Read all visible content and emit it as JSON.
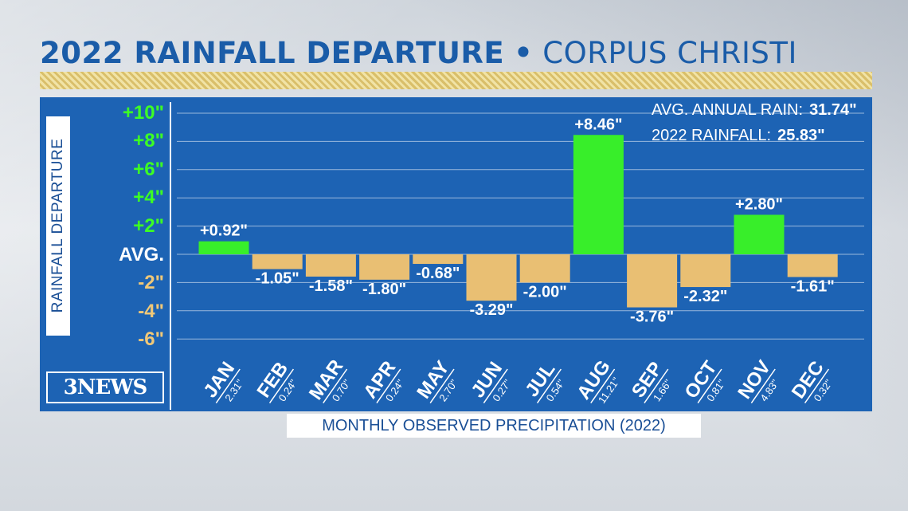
{
  "header": {
    "title_bold": "2022 RAINFALL DEPARTURE",
    "title_sep": "•",
    "title_light": "CORPUS CHRISTI"
  },
  "footer": {
    "label": "MONTHLY OBSERVED PRECIPITATION (2022)"
  },
  "branding": {
    "logo_text": "3NEWS"
  },
  "stats": {
    "avg_label": "AVG. ANNUAL RAIN:",
    "avg_value": "31.74\"",
    "total_label": "2022 RAINFALL:",
    "total_value": "25.83\""
  },
  "colors": {
    "panel": "#1d63b4",
    "positive_bar": "#38ee2a",
    "negative_bar": "#e9bf73",
    "title": "#1a5ca8"
  },
  "chart_data": {
    "type": "bar",
    "title": "2022 RAINFALL DEPARTURE • CORPUS CHRISTI",
    "ylabel": "RAINFALL DEPARTURE",
    "xlabel": "MONTHLY OBSERVED PRECIPITATION (2022)",
    "ylim": [
      -6,
      10
    ],
    "yticks": [
      {
        "value": 10,
        "label": "+10\""
      },
      {
        "value": 8,
        "label": "+8\""
      },
      {
        "value": 6,
        "label": "+6\""
      },
      {
        "value": 4,
        "label": "+4\""
      },
      {
        "value": 2,
        "label": "+2\""
      },
      {
        "value": 0,
        "label": "AVG."
      },
      {
        "value": -2,
        "label": "-2\""
      },
      {
        "value": -4,
        "label": "-4\""
      },
      {
        "value": -6,
        "label": "-6\""
      }
    ],
    "grid": true,
    "categories": [
      "JAN",
      "FEB",
      "MAR",
      "APR",
      "MAY",
      "JUN",
      "JUL",
      "AUG",
      "SEP",
      "OCT",
      "NOV",
      "DEC"
    ],
    "values": [
      0.92,
      -1.05,
      -1.58,
      -1.8,
      -0.68,
      -3.29,
      -2.0,
      8.46,
      -3.76,
      -2.32,
      2.8,
      -1.61
    ],
    "value_labels": [
      "+0.92\"",
      "-1.05\"",
      "-1.58\"",
      "-1.80\"",
      "-0.68\"",
      "-3.29\"",
      "-2.00\"",
      "+8.46\"",
      "-3.76\"",
      "-2.32\"",
      "+2.80\"",
      "-1.61\""
    ],
    "observed": [
      "2.31\"",
      "0.24\"",
      "0.70\"",
      "0.24\"",
      "2.70\"",
      "0.27\"",
      "0.54\"",
      "11.21\"",
      "1.66\"",
      "0.81\"",
      "4.83\"",
      "0.32\""
    ]
  }
}
